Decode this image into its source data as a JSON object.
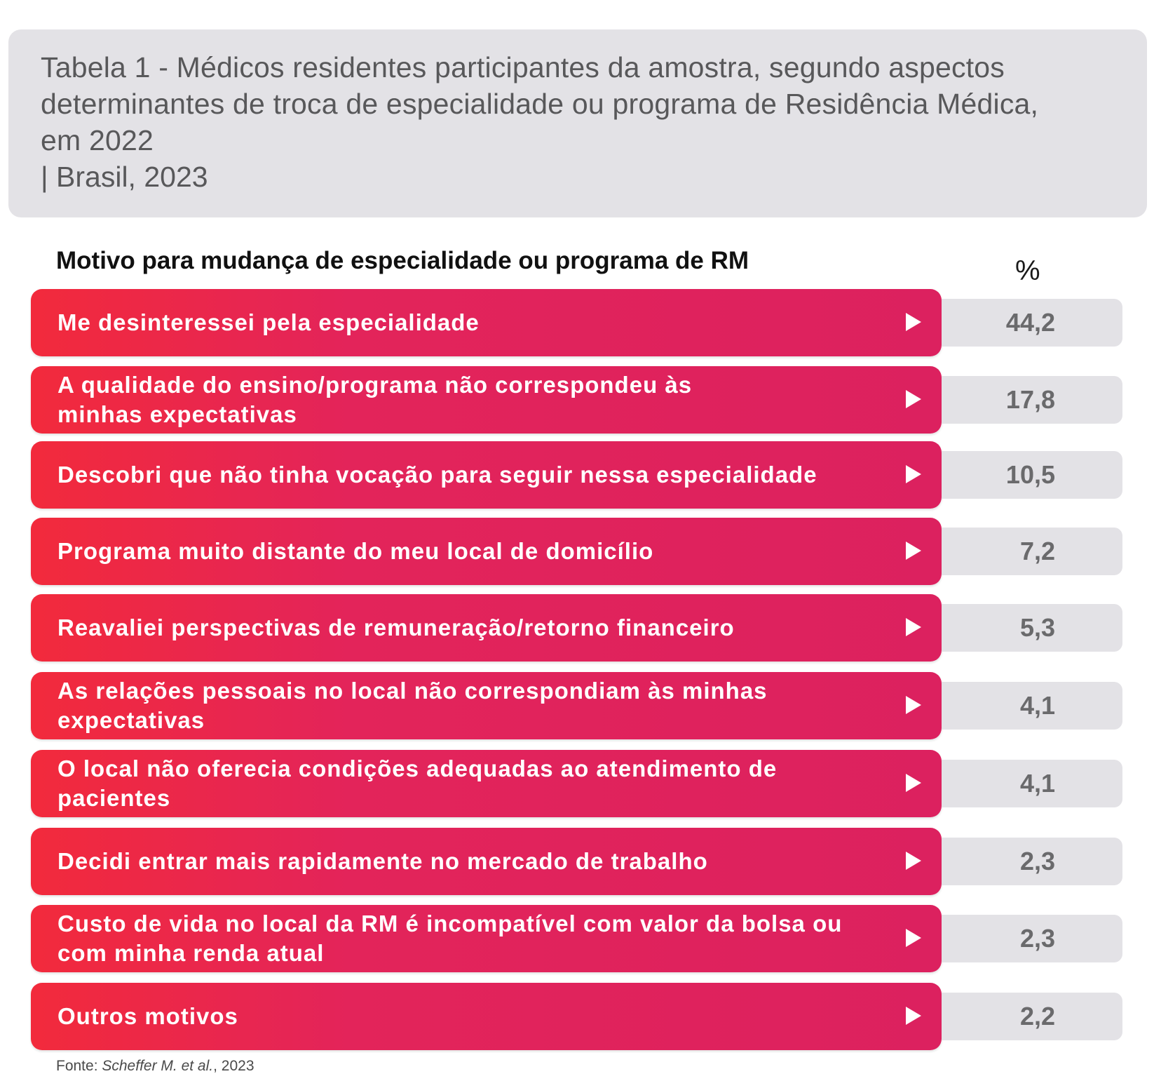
{
  "title": {
    "main": "Tabela 1 - Médicos residentes participantes da amostra, segundo aspectos determinantes de troca de especialidade ou programa de Residência Médica, em 2022",
    "subtitle": "| Brasil, 2023"
  },
  "table": {
    "header_reason": "Motivo para mudança de especialidade ou programa de RM",
    "header_pct": "%",
    "rows": [
      {
        "label": "Me desinteressei pela especialidade",
        "value": "44,2"
      },
      {
        "label": "A qualidade do ensino/programa não correspondeu às minhas expectativas",
        "value": "17,8"
      },
      {
        "label": "Descobri que não tinha vocação para seguir nessa especialidade",
        "value": "10,5"
      },
      {
        "label": "Programa muito distante do meu local de domicílio",
        "value": "7,2"
      },
      {
        "label": "Reavaliei perspectivas de remuneração/retorno financeiro",
        "value": "5,3"
      },
      {
        "label": "As relações pessoais no local não correspondiam às minhas expectativas",
        "value": "4,1"
      },
      {
        "label": "O local não oferecia condições adequadas ao atendimento de pacientes",
        "value": "4,1"
      },
      {
        "label": "Decidi entrar mais rapidamente no mercado de trabalho",
        "value": "2,3"
      },
      {
        "label": "Custo de vida no local da RM é incompatível com valor da bolsa ou com minha renda atual",
        "value": "2,3"
      },
      {
        "label": "Outros motivos",
        "value": "2,2"
      }
    ]
  },
  "source": {
    "prefix": "Fonte: ",
    "author": "Scheffer M. et al.",
    "year": ", 2023"
  },
  "colors": {
    "bar_start": "#f22a3c",
    "bar_end": "#dc215f",
    "panel": "#e3e2e6",
    "value_text": "#6a6a6c"
  }
}
